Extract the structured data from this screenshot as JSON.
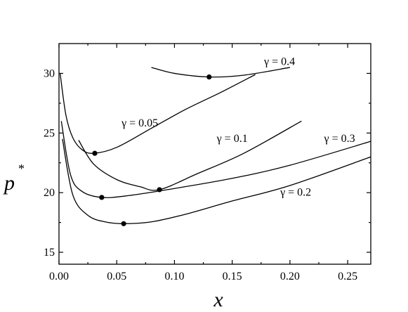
{
  "chart_data": {
    "type": "line",
    "title": "",
    "xlabel": "x",
    "ylabel": "p",
    "ylabel_superscript": "*",
    "xlim": [
      0.0,
      0.27
    ],
    "ylim": [
      14,
      32.5
    ],
    "xticks": [
      "0.00",
      "0.05",
      "0.10",
      "0.15",
      "0.20",
      "0.25"
    ],
    "yticks": [
      "15",
      "20",
      "25",
      "30"
    ],
    "grid": false,
    "series": [
      {
        "name": "γ = 0.4",
        "x": [
          0.08,
          0.1,
          0.13,
          0.16,
          0.2
        ],
        "y": [
          30.5,
          30.0,
          29.7,
          29.85,
          30.5
        ],
        "minimum": {
          "x": 0.13,
          "y": 29.7
        }
      },
      {
        "name": "γ = 0.05",
        "x": [
          0.001,
          0.006,
          0.012,
          0.02,
          0.03,
          0.05,
          0.08,
          0.11,
          0.14,
          0.17
        ],
        "y": [
          30.0,
          26.5,
          24.6,
          23.6,
          23.3,
          23.8,
          25.4,
          27.0,
          28.4,
          29.9
        ],
        "minimum": {
          "x": 0.031,
          "y": 23.3
        }
      },
      {
        "name": "γ = 0.1",
        "x": [
          0.017,
          0.03,
          0.05,
          0.07,
          0.087,
          0.12,
          0.16,
          0.21
        ],
        "y": [
          24.4,
          22.4,
          21.1,
          20.5,
          20.25,
          21.6,
          23.3,
          26.0
        ],
        "minimum": {
          "x": 0.087,
          "y": 20.25
        }
      },
      {
        "name": "γ = 0.3",
        "x": [
          0.002,
          0.01,
          0.02,
          0.037,
          0.06,
          0.1,
          0.15,
          0.2,
          0.27
        ],
        "y": [
          26.0,
          21.5,
          20.1,
          19.6,
          19.75,
          20.35,
          21.2,
          22.3,
          24.3
        ],
        "minimum": {
          "x": 0.037,
          "y": 19.6
        }
      },
      {
        "name": "γ = 0.2",
        "x": [
          0.003,
          0.012,
          0.025,
          0.04,
          0.056,
          0.08,
          0.11,
          0.15,
          0.2,
          0.27
        ],
        "y": [
          24.5,
          19.8,
          18.1,
          17.55,
          17.4,
          17.55,
          18.2,
          19.3,
          20.6,
          23.0
        ],
        "minimum": {
          "x": 0.056,
          "y": 17.4
        }
      }
    ],
    "annotations": [
      {
        "text": "γ = 0.4",
        "x": 0.191,
        "y": 30.7
      },
      {
        "text": "γ = 0.05",
        "x": 0.07,
        "y": 25.55
      },
      {
        "text": "γ = 0.1",
        "x": 0.15,
        "y": 24.25
      },
      {
        "text": "γ = 0.3",
        "x": 0.243,
        "y": 24.25
      },
      {
        "text": "γ = 0.2",
        "x": 0.205,
        "y": 19.75
      }
    ]
  }
}
